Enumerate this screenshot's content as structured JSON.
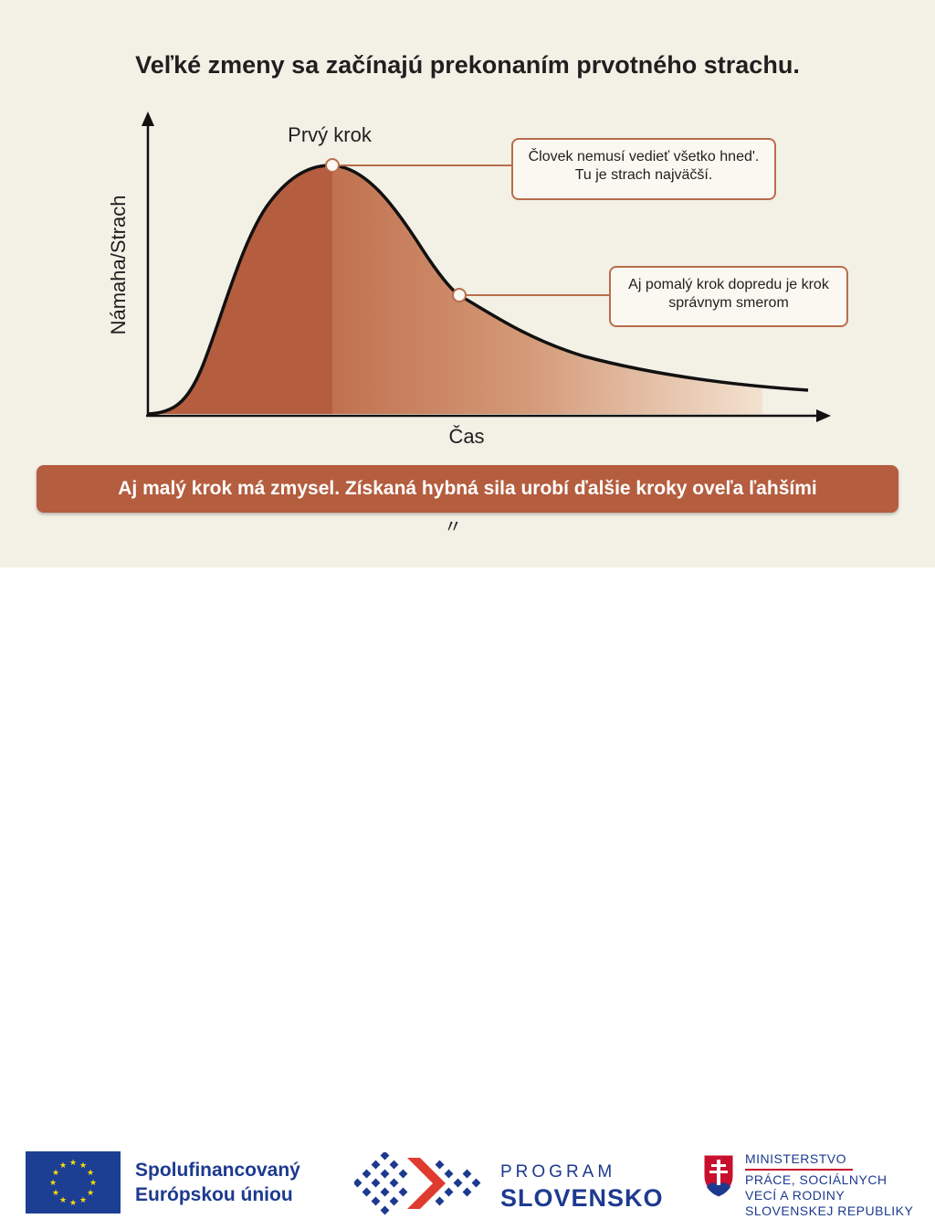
{
  "title": "Veľké zmeny sa začínajú prekonaním prvotného strachu.",
  "chart": {
    "y_axis_label": "Námaha/Strach",
    "x_axis_label": "Čas",
    "peak_label": "Prvý krok",
    "callout_peak": "Človek nemusí vedieť všetko hned'. Tu je strach najväčší.",
    "callout_slope": "Aj pomalý krok dopredu je krok správnym smerom"
  },
  "banner": {
    "text": "Aj malý krok má zmysel. Získaná hybná sila urobí ďalšie kroky oveľa ľahšími",
    "trailing_mark": "〃"
  },
  "footer": {
    "eu_line1": "Spolufinancovaný",
    "eu_line2": "Európskou úniou",
    "program_word": "PROGRAM",
    "program_name": "SLOVENSKO",
    "ministry_line1": "MINISTERSTVO",
    "ministry_line2": "PRÁCE, SOCIÁLNYCH",
    "ministry_line3": "VECÍ A RODINY",
    "ministry_line4": "SLOVENSKEJ REPUBLIKY"
  },
  "colors": {
    "curve_fill_dark": "#b45d3f",
    "curve_fill_light": "#e9c4a8",
    "banner": "#b45d3f",
    "logo_blue": "#1d3a8f",
    "logo_red": "#e03b2f",
    "eu_blue": "#1c3f94",
    "eu_star": "#ffdd00"
  }
}
